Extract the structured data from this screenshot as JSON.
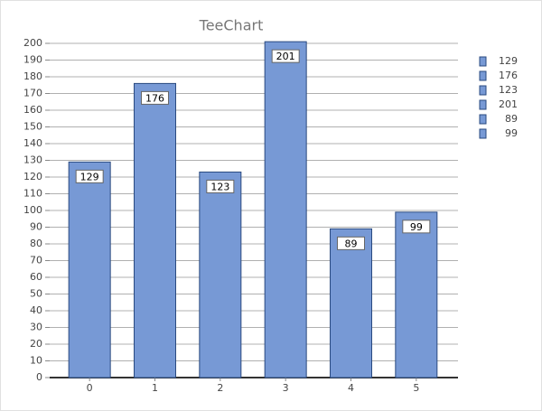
{
  "chart_data": {
    "type": "bar",
    "title": "TeeChart",
    "categories": [
      "0",
      "1",
      "2",
      "3",
      "4",
      "5"
    ],
    "values": [
      129,
      176,
      123,
      201,
      89,
      99
    ],
    "color": "#7799d5",
    "ylim": [
      0,
      201
    ],
    "yticks": [
      0,
      10,
      20,
      30,
      40,
      50,
      60,
      70,
      80,
      90,
      100,
      110,
      120,
      130,
      140,
      150,
      160,
      170,
      180,
      190,
      200
    ],
    "grid": true,
    "legend": "right"
  }
}
